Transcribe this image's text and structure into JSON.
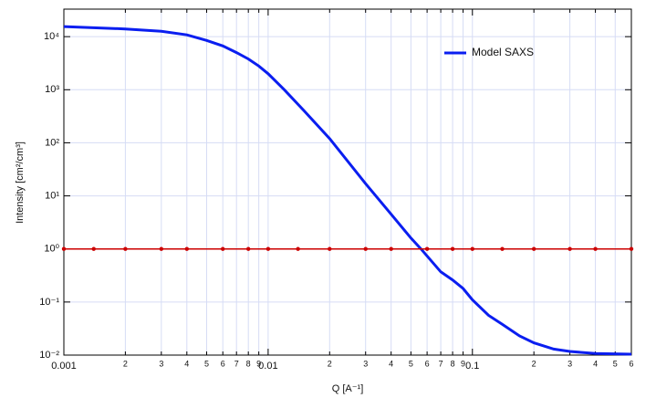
{
  "chart_data": {
    "type": "line",
    "x_label": "Q [A⁻¹]",
    "y_label": "Intensity [cm²/cm³]",
    "log_x": true,
    "log_y": true,
    "grid": true,
    "legend": "upper right",
    "xlim": [
      0.001,
      0.6
    ],
    "ylim": [
      0.01,
      33000
    ],
    "xticks": [
      0.001,
      {
        "value": 0.002,
        "label": "2"
      },
      {
        "value": 0.003,
        "label": "3"
      },
      {
        "value": 0.004,
        "label": "4"
      },
      {
        "value": 0.005,
        "label": "5"
      },
      {
        "value": 0.006,
        "label": "6"
      },
      {
        "value": 0.007,
        "label": "7"
      },
      {
        "value": 0.008,
        "label": "8"
      },
      {
        "value": 0.009,
        "label": "9"
      },
      0.01,
      {
        "value": 0.02,
        "label": "2"
      },
      {
        "value": 0.03,
        "label": "3"
      },
      {
        "value": 0.04,
        "label": "4"
      },
      {
        "value": 0.05,
        "label": "5"
      },
      {
        "value": 0.06,
        "label": "6"
      },
      {
        "value": 0.07,
        "label": "7"
      },
      {
        "value": 0.08,
        "label": "8"
      },
      {
        "value": 0.09,
        "label": "9"
      },
      0.1,
      {
        "value": 0.2,
        "label": "2"
      },
      {
        "value": 0.3,
        "label": "3"
      },
      {
        "value": 0.4,
        "label": "4"
      },
      {
        "value": 0.5,
        "label": "5"
      },
      {
        "value": 0.6,
        "label": "6"
      }
    ],
    "yticks": [
      {
        "value": 0.01,
        "label": "10⁻²"
      },
      {
        "value": 0.1,
        "label": "10⁻¹"
      },
      {
        "value": 1,
        "label": "10⁰"
      },
      {
        "value": 10,
        "label": "10¹"
      },
      {
        "value": 100,
        "label": "10²"
      },
      {
        "value": 1000,
        "label": "10³"
      },
      {
        "value": 10000,
        "label": "10⁴"
      }
    ],
    "series": [
      {
        "name": "Model SAXS",
        "color": "#0a1ef0",
        "x": [
          0.001,
          0.002,
          0.003,
          0.004,
          0.005,
          0.006,
          0.007,
          0.008,
          0.009,
          0.01,
          0.012,
          0.015,
          0.02,
          0.03,
          0.04,
          0.05,
          0.056,
          0.07,
          0.08,
          0.09,
          0.1,
          0.12,
          0.14,
          0.17,
          0.2,
          0.25,
          0.3,
          0.4,
          0.6
        ],
        "values": [
          15500,
          14000,
          12600,
          10800,
          8500,
          6700,
          5000,
          3800,
          2800,
          2000,
          1000,
          400,
          120,
          17,
          4.5,
          1.6,
          1,
          0.37,
          0.26,
          0.18,
          0.11,
          0.056,
          0.038,
          0.023,
          0.017,
          0.013,
          0.0117,
          0.0107,
          0.0104
        ]
      },
      {
        "color": "#cc0000",
        "markers": true,
        "x": [
          0.001,
          0.0014,
          0.002,
          0.003,
          0.004,
          0.006,
          0.008,
          0.01,
          0.014,
          0.02,
          0.03,
          0.04,
          0.06,
          0.08,
          0.1,
          0.14,
          0.2,
          0.3,
          0.4,
          0.6
        ],
        "values": [
          1,
          1,
          1,
          1,
          1,
          1,
          1,
          1,
          1,
          1,
          1,
          1,
          1,
          1,
          1,
          1,
          1,
          1,
          1,
          1
        ]
      }
    ]
  }
}
